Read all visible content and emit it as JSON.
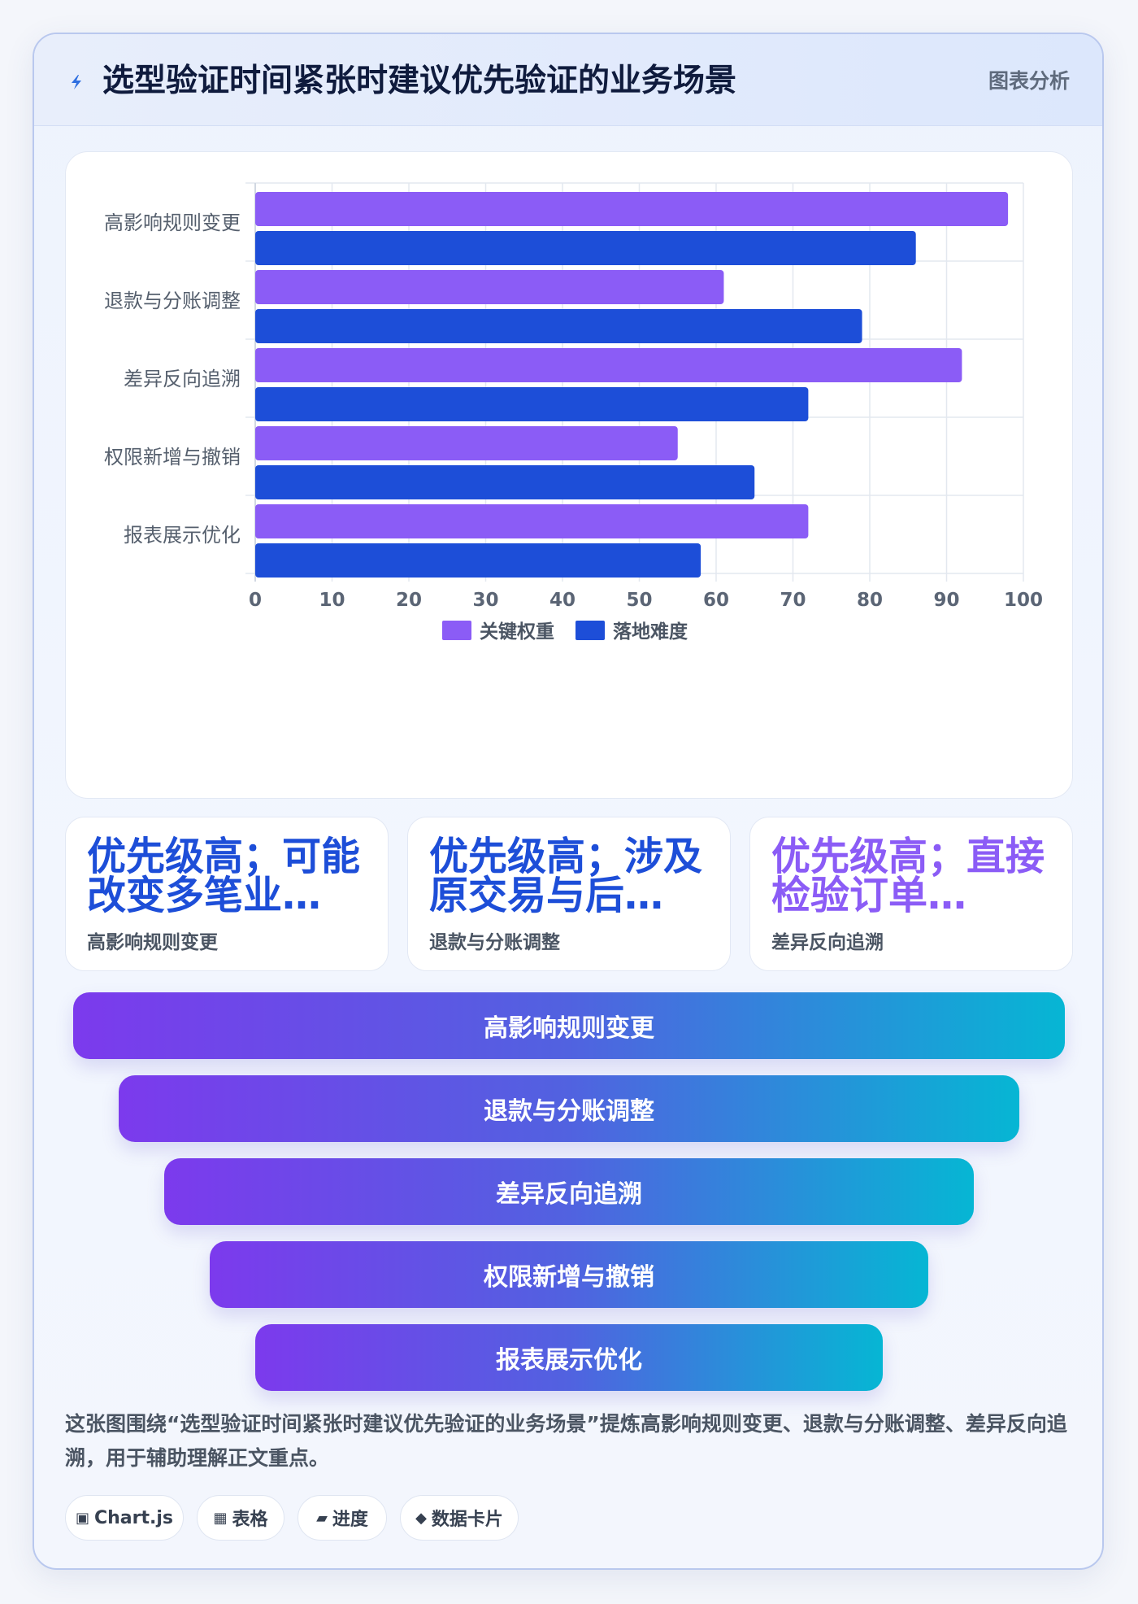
{
  "header": {
    "title": "选型验证时间紧张时建议优先验证的业务场景",
    "tag": "图表分析",
    "icon": "lightning-icon"
  },
  "chart_data": {
    "type": "bar",
    "orientation": "horizontal",
    "categories": [
      "高影响规则变更",
      "退款与分账调整",
      "差异反向追溯",
      "权限新增与撤销",
      "报表展示优化"
    ],
    "series": [
      {
        "name": "关键权重",
        "values": [
          98,
          61,
          92,
          55,
          72
        ],
        "color": "#8b5cf6"
      },
      {
        "name": "落地难度",
        "values": [
          86,
          79,
          72,
          65,
          58
        ],
        "color": "#1d4ed8"
      }
    ],
    "x_ticks": [
      "0",
      "10",
      "20",
      "30",
      "40",
      "50",
      "60",
      "70",
      "80",
      "90",
      "100"
    ],
    "xlim": [
      0,
      100
    ],
    "grid": true,
    "legend_position": "bottom"
  },
  "cards": [
    {
      "value": "优先级高；可能改变多笔业…",
      "label": "高影响规则变更",
      "color": "#1d4ed8"
    },
    {
      "value": "优先级高；涉及原交易与后…",
      "label": "退款与分账调整",
      "color": "#1d4ed8"
    },
    {
      "value": "优先级高；直接检验订单…",
      "label": "差异反向追溯",
      "color": "#8b5cf6"
    }
  ],
  "funnel": [
    "高影响规则变更",
    "退款与分账调整",
    "差异反向追溯",
    "权限新增与撤销",
    "报表展示优化"
  ],
  "description": "这张图围绕“选型验证时间紧张时建议优先验证的业务场景”提炼高影响规则变更、退款与分账调整、差异反向追溯，用于辅助理解正文重点。",
  "chips": [
    {
      "icon": "chart-icon",
      "glyph": "▣",
      "label": "Chart.js"
    },
    {
      "icon": "table-icon",
      "glyph": "▦",
      "label": "表格"
    },
    {
      "icon": "progress-icon",
      "glyph": "▰",
      "label": "进度"
    },
    {
      "icon": "diamond-icon",
      "glyph": "◆",
      "label": "数据卡片"
    }
  ]
}
